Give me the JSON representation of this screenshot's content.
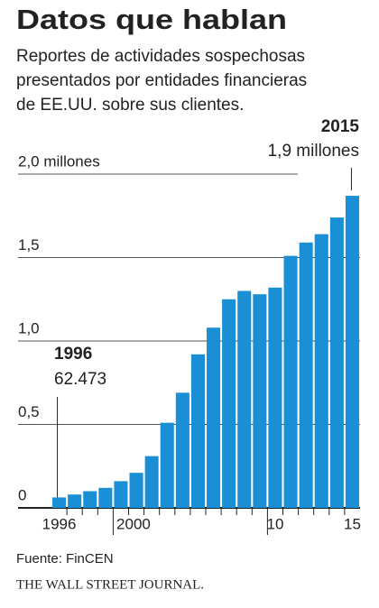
{
  "chart_data": {
    "type": "bar",
    "title": "Datos que hablan",
    "subtitle": [
      "Reportes de actividades sospechosas",
      "presentados por entidades financieras",
      "de EE.UU. sobre sus clientes."
    ],
    "categories": [
      "1996",
      null,
      null,
      null,
      "2000",
      null,
      null,
      null,
      null,
      null,
      null,
      null,
      null,
      null,
      "10",
      null,
      null,
      null,
      null,
      "15"
    ],
    "values": [
      0.062473,
      0.08,
      0.1,
      0.12,
      0.16,
      0.21,
      0.31,
      0.51,
      0.69,
      0.92,
      1.08,
      1.25,
      1.3,
      1.28,
      1.32,
      1.51,
      1.59,
      1.64,
      1.74,
      1.87
    ],
    "color": "#1a8fd6",
    "ylim": [
      0,
      2.0
    ],
    "yticks": [
      0,
      {
        "value": 0.5,
        "label": "0,5"
      },
      {
        "value": 1.0,
        "label": "1,0"
      },
      {
        "value": 1.5,
        "label": "1,5"
      },
      {
        "value": 2.0,
        "label": "2,0 millones"
      }
    ],
    "grid": true,
    "annotations": [
      {
        "year": "1996",
        "text": "62.473",
        "index": 0
      },
      {
        "year": "2015",
        "text": "1,9 millones",
        "index": 19
      }
    ],
    "source": "Fuente: FinCEN",
    "publisher": "THE WALL STREET JOURNAL."
  }
}
